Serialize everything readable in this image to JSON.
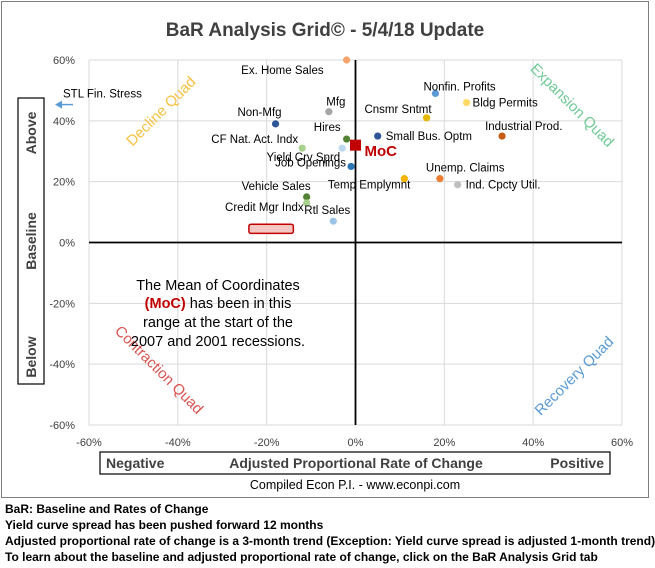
{
  "chart_data": {
    "type": "scatter",
    "title": "BaR Analysis Grid© - 5/4/18 Update",
    "xlim": [
      -60,
      60
    ],
    "ylim": [
      -60,
      60
    ],
    "x_ticks": [
      "-60%",
      "-40%",
      "-20%",
      "0%",
      "20%",
      "40%",
      "60%"
    ],
    "y_ticks": [
      "60%",
      "40%",
      "20%",
      "0%",
      "-20%",
      "-40%",
      "-60%"
    ],
    "grid": true,
    "x_axis_box": {
      "left": "Negative",
      "center": "Adjusted Proportional Rate of Change",
      "right": "Positive"
    },
    "y_axis_box": {
      "top": "Above",
      "middle": "Baseline",
      "bottom": "Below"
    },
    "quadrants": [
      {
        "label": "Decline Quad",
        "color": "#f5c242"
      },
      {
        "label": "Expansion Quad",
        "color": "#70c995"
      },
      {
        "label": "Contraction Quad",
        "color": "#d9534f"
      },
      {
        "label": "Recovery Quad",
        "color": "#5b9bd5"
      }
    ],
    "points": [
      {
        "name": "Ex. Home Sales",
        "x": -2,
        "y": 60,
        "color": "#f4a46a"
      },
      {
        "name": "Nonfin. Profits",
        "x": 18,
        "y": 49,
        "color": "#5b9bd5"
      },
      {
        "name": "Bldg Permits",
        "x": 25,
        "y": 46,
        "color": "#ffd966"
      },
      {
        "name": "Cnsmr Sntmt",
        "x": 16,
        "y": 41,
        "color": "#e6b800"
      },
      {
        "name": "Mfg",
        "x": -6,
        "y": 43,
        "color": "#a5a5a5"
      },
      {
        "name": "Non-Mfg",
        "x": -18,
        "y": 39,
        "color": "#2e5597"
      },
      {
        "name": "Industrial Prod.",
        "x": 33,
        "y": 35,
        "color": "#c55a11"
      },
      {
        "name": "Hires",
        "x": -2,
        "y": 34,
        "color": "#548235"
      },
      {
        "name": "Small Bus. Optm",
        "x": 5,
        "y": 35,
        "color": "#2e5597"
      },
      {
        "name": "CF Nat. Act. Indx",
        "x": -12,
        "y": 31,
        "color": "#a9d18e"
      },
      {
        "name": "Yield Crv Sprd",
        "x": -3,
        "y": 31,
        "color": "#bdd7ee"
      },
      {
        "name": "Job Openings",
        "x": -1,
        "y": 25,
        "color": "#2e75b6"
      },
      {
        "name": "Unemp. Claims",
        "x": 19,
        "y": 21,
        "color": "#ed7d31"
      },
      {
        "name": "Temp Emplymnt",
        "x": 11,
        "y": 21,
        "color": "#f4b400"
      },
      {
        "name": "Ind. Cpcty Util.",
        "x": 23,
        "y": 19,
        "color": "#bfbfbf"
      },
      {
        "name": "Vehicle Sales",
        "x": -11,
        "y": 15,
        "color": "#548235"
      },
      {
        "name": "Credit Mgr Indx",
        "x": -11,
        "y": 13,
        "color": "#a9d18e"
      },
      {
        "name": "Rtl Sales",
        "x": -5,
        "y": 7,
        "color": "#9dc3e6"
      }
    ],
    "moc": {
      "name": "MoC",
      "x": 0,
      "y": 32,
      "color": "#c00000"
    },
    "stl": {
      "name": "STL Fin. Stress",
      "x": -60,
      "y": 46,
      "color": "#5b9bd5"
    },
    "moc_range": {
      "x": [
        -24,
        -14
      ],
      "y": [
        3,
        6
      ]
    },
    "annotation": {
      "line1": "The Mean of Coordinates",
      "moc_text": "(MoC)",
      "line2_rest": " has been in this",
      "line3": "range at the start of the",
      "line4": "2007 and 2001 recessions."
    },
    "source": "Compiled Econ P.I. - www.econpi.com"
  },
  "notes": [
    "BaR: Baseline and Rates of Change",
    "Yield curve spread has been pushed forward 12 months",
    "Adjusted proportional rate of change is a 3-month trend (Exception: Yield curve spread is adjusted 1-month trend)",
    "To learn about the baseline and adjusted proportional rate of change, click on the BaR Analysis Grid tab"
  ]
}
